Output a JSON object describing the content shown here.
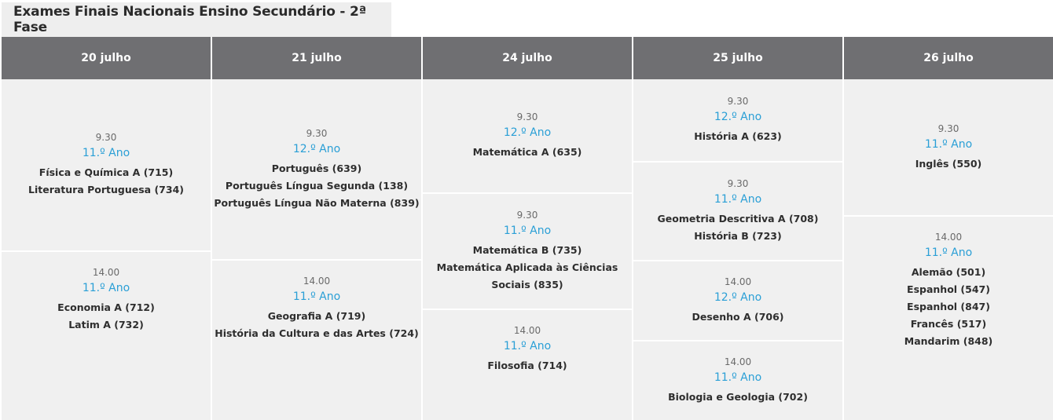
{
  "title": "Exames Finais Nacionais Ensino Secundário - 2ª Fase",
  "columns": [
    {
      "date": "20 julho",
      "slots": [
        {
          "time": "9.30",
          "year": "11.º Ano",
          "subjects": [
            "Física e Química A (715)",
            "Literatura Portuguesa (734)"
          ]
        },
        {
          "time": "14.00",
          "year": "11.º Ano",
          "subjects": [
            "Economia A (712)",
            "Latim A (732)"
          ]
        }
      ]
    },
    {
      "date": "21 julho",
      "slots": [
        {
          "time": "9.30",
          "year": "12.º Ano",
          "subjects": [
            "Português (639)",
            "Português Língua Segunda (138)",
            "Português Língua Não Materna (839)"
          ]
        },
        {
          "time": "14.00",
          "year": "11.º Ano",
          "subjects": [
            "Geografia A (719)",
            "História da Cultura e das Artes (724)"
          ]
        }
      ]
    },
    {
      "date": "24 julho",
      "slots": [
        {
          "time": "9.30",
          "year": "12.º Ano",
          "subjects": [
            "Matemática A (635)"
          ]
        },
        {
          "time": "9.30",
          "year": "11.º Ano",
          "subjects": [
            "Matemática B (735)",
            "Matemática Aplicada às Ciências",
            "Sociais (835)"
          ]
        },
        {
          "time": "14.00",
          "year": "11.º Ano",
          "subjects": [
            "Filosofia (714)"
          ]
        }
      ]
    },
    {
      "date": "25 julho",
      "slots": [
        {
          "time": "9.30",
          "year": "12.º Ano",
          "subjects": [
            "História A (623)"
          ]
        },
        {
          "time": "9.30",
          "year": "11.º Ano",
          "subjects": [
            "Geometria Descritiva A (708)",
            "História B (723)"
          ]
        },
        {
          "time": "14.00",
          "year": "12.º Ano",
          "subjects": [
            "Desenho A (706)"
          ]
        },
        {
          "time": "14.00",
          "year": "11.º Ano",
          "subjects": [
            "Biologia e Geologia (702)"
          ]
        }
      ]
    },
    {
      "date": "26 julho",
      "slots": [
        {
          "time": "9.30",
          "year": "11.º Ano",
          "subjects": [
            "Inglês (550)"
          ]
        },
        {
          "time": "14.00",
          "year": "11.º Ano",
          "subjects": [
            "Alemão (501)",
            "Espanhol (547)",
            "Espanhol (847)",
            "Francês (517)",
            "Mandarim (848)"
          ]
        }
      ]
    }
  ],
  "colors": {
    "header_bg": "#6f6f72",
    "cell_bg": "#f0f0f0",
    "year_text": "#2a9fd6",
    "subject_text": "#2e2e2e",
    "time_text": "#6a6a6a"
  }
}
